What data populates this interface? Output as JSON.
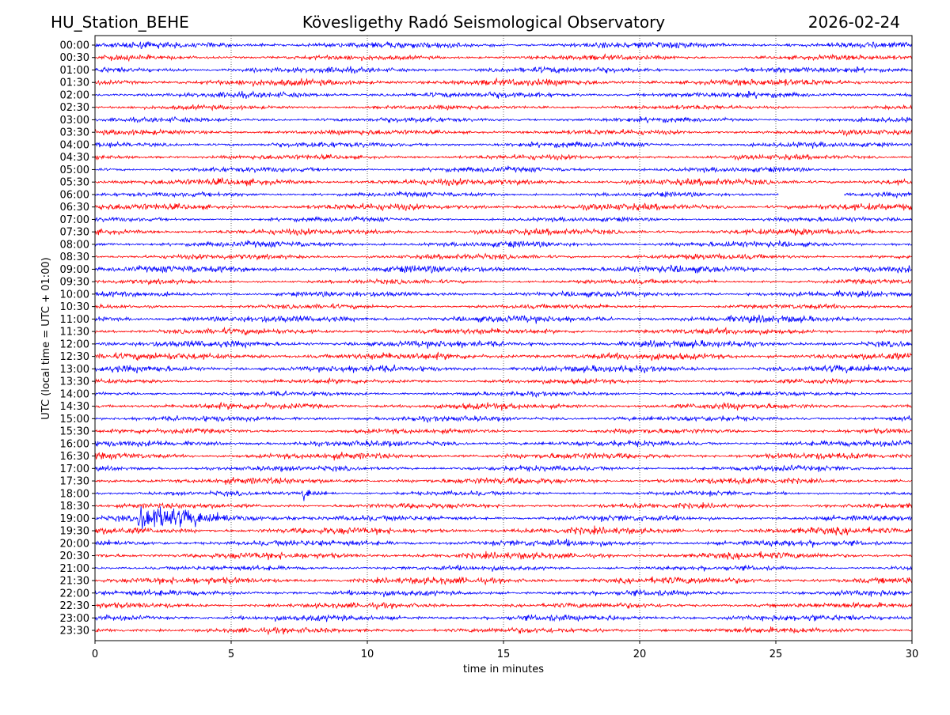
{
  "header": {
    "station": "HU_Station_BEHE",
    "observatory": "Kövesligethy Radó Seismological Observatory",
    "date": "2026-02-24"
  },
  "chart_data": {
    "type": "line",
    "subtype": "helicorder",
    "xlabel": "time in minutes",
    "ylabel": "UTC (local time = UTC + 01:00)",
    "xlim": [
      0,
      30
    ],
    "xticks": [
      0,
      5,
      10,
      15,
      20,
      25,
      30
    ],
    "grid": "vertical dotted at x ticks",
    "row_labels": [
      "00:00",
      "00:30",
      "01:00",
      "01:30",
      "02:00",
      "02:30",
      "03:00",
      "03:30",
      "04:00",
      "04:30",
      "05:00",
      "05:30",
      "06:00",
      "06:30",
      "07:00",
      "07:30",
      "08:00",
      "08:30",
      "09:00",
      "09:30",
      "10:00",
      "10:30",
      "11:00",
      "11:30",
      "12:00",
      "12:30",
      "13:00",
      "13:30",
      "14:00",
      "14:30",
      "15:00",
      "15:30",
      "16:00",
      "16:30",
      "17:00",
      "17:30",
      "18:00",
      "18:30",
      "19:00",
      "19:30",
      "20:00",
      "20:30",
      "21:00",
      "21:30",
      "22:00",
      "22:30",
      "23:00",
      "23:30"
    ],
    "colors": {
      "even_rows": "#0000ff",
      "odd_rows": "#ff0000"
    },
    "events": [
      {
        "row": "18:00",
        "start_min": 7.55,
        "end_min": 9.0,
        "relative_amplitude": 4
      },
      {
        "row": "19:00",
        "start_min": 1.5,
        "end_min": 7.6,
        "relative_amplitude": 7
      }
    ],
    "gaps": [
      {
        "row": "06:00",
        "start_min": 25.1,
        "end_min": 27.5
      }
    ]
  }
}
